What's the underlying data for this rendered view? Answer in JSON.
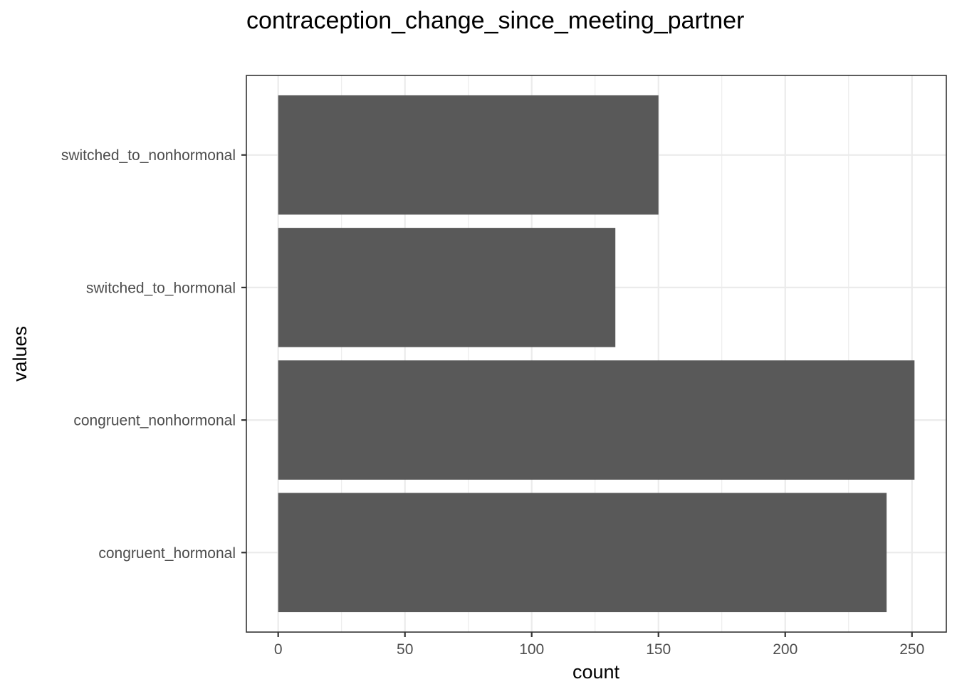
{
  "chart_data": {
    "type": "bar",
    "orientation": "horizontal",
    "title": "contraception_change_since_meeting_partner",
    "xlabel": "count",
    "ylabel": "values",
    "categories": [
      "congruent_hormonal",
      "congruent_nonhormonal",
      "switched_to_hormonal",
      "switched_to_nonhormonal"
    ],
    "values": [
      240,
      251,
      133,
      150
    ],
    "xlim": [
      -12.55,
      263.55
    ],
    "xticks": [
      0,
      50,
      100,
      150,
      200,
      250
    ],
    "grid": true,
    "legend": "none",
    "bar_color": "#595959",
    "grid_color": "#ebebeb",
    "panel_border_color": "#333333"
  }
}
